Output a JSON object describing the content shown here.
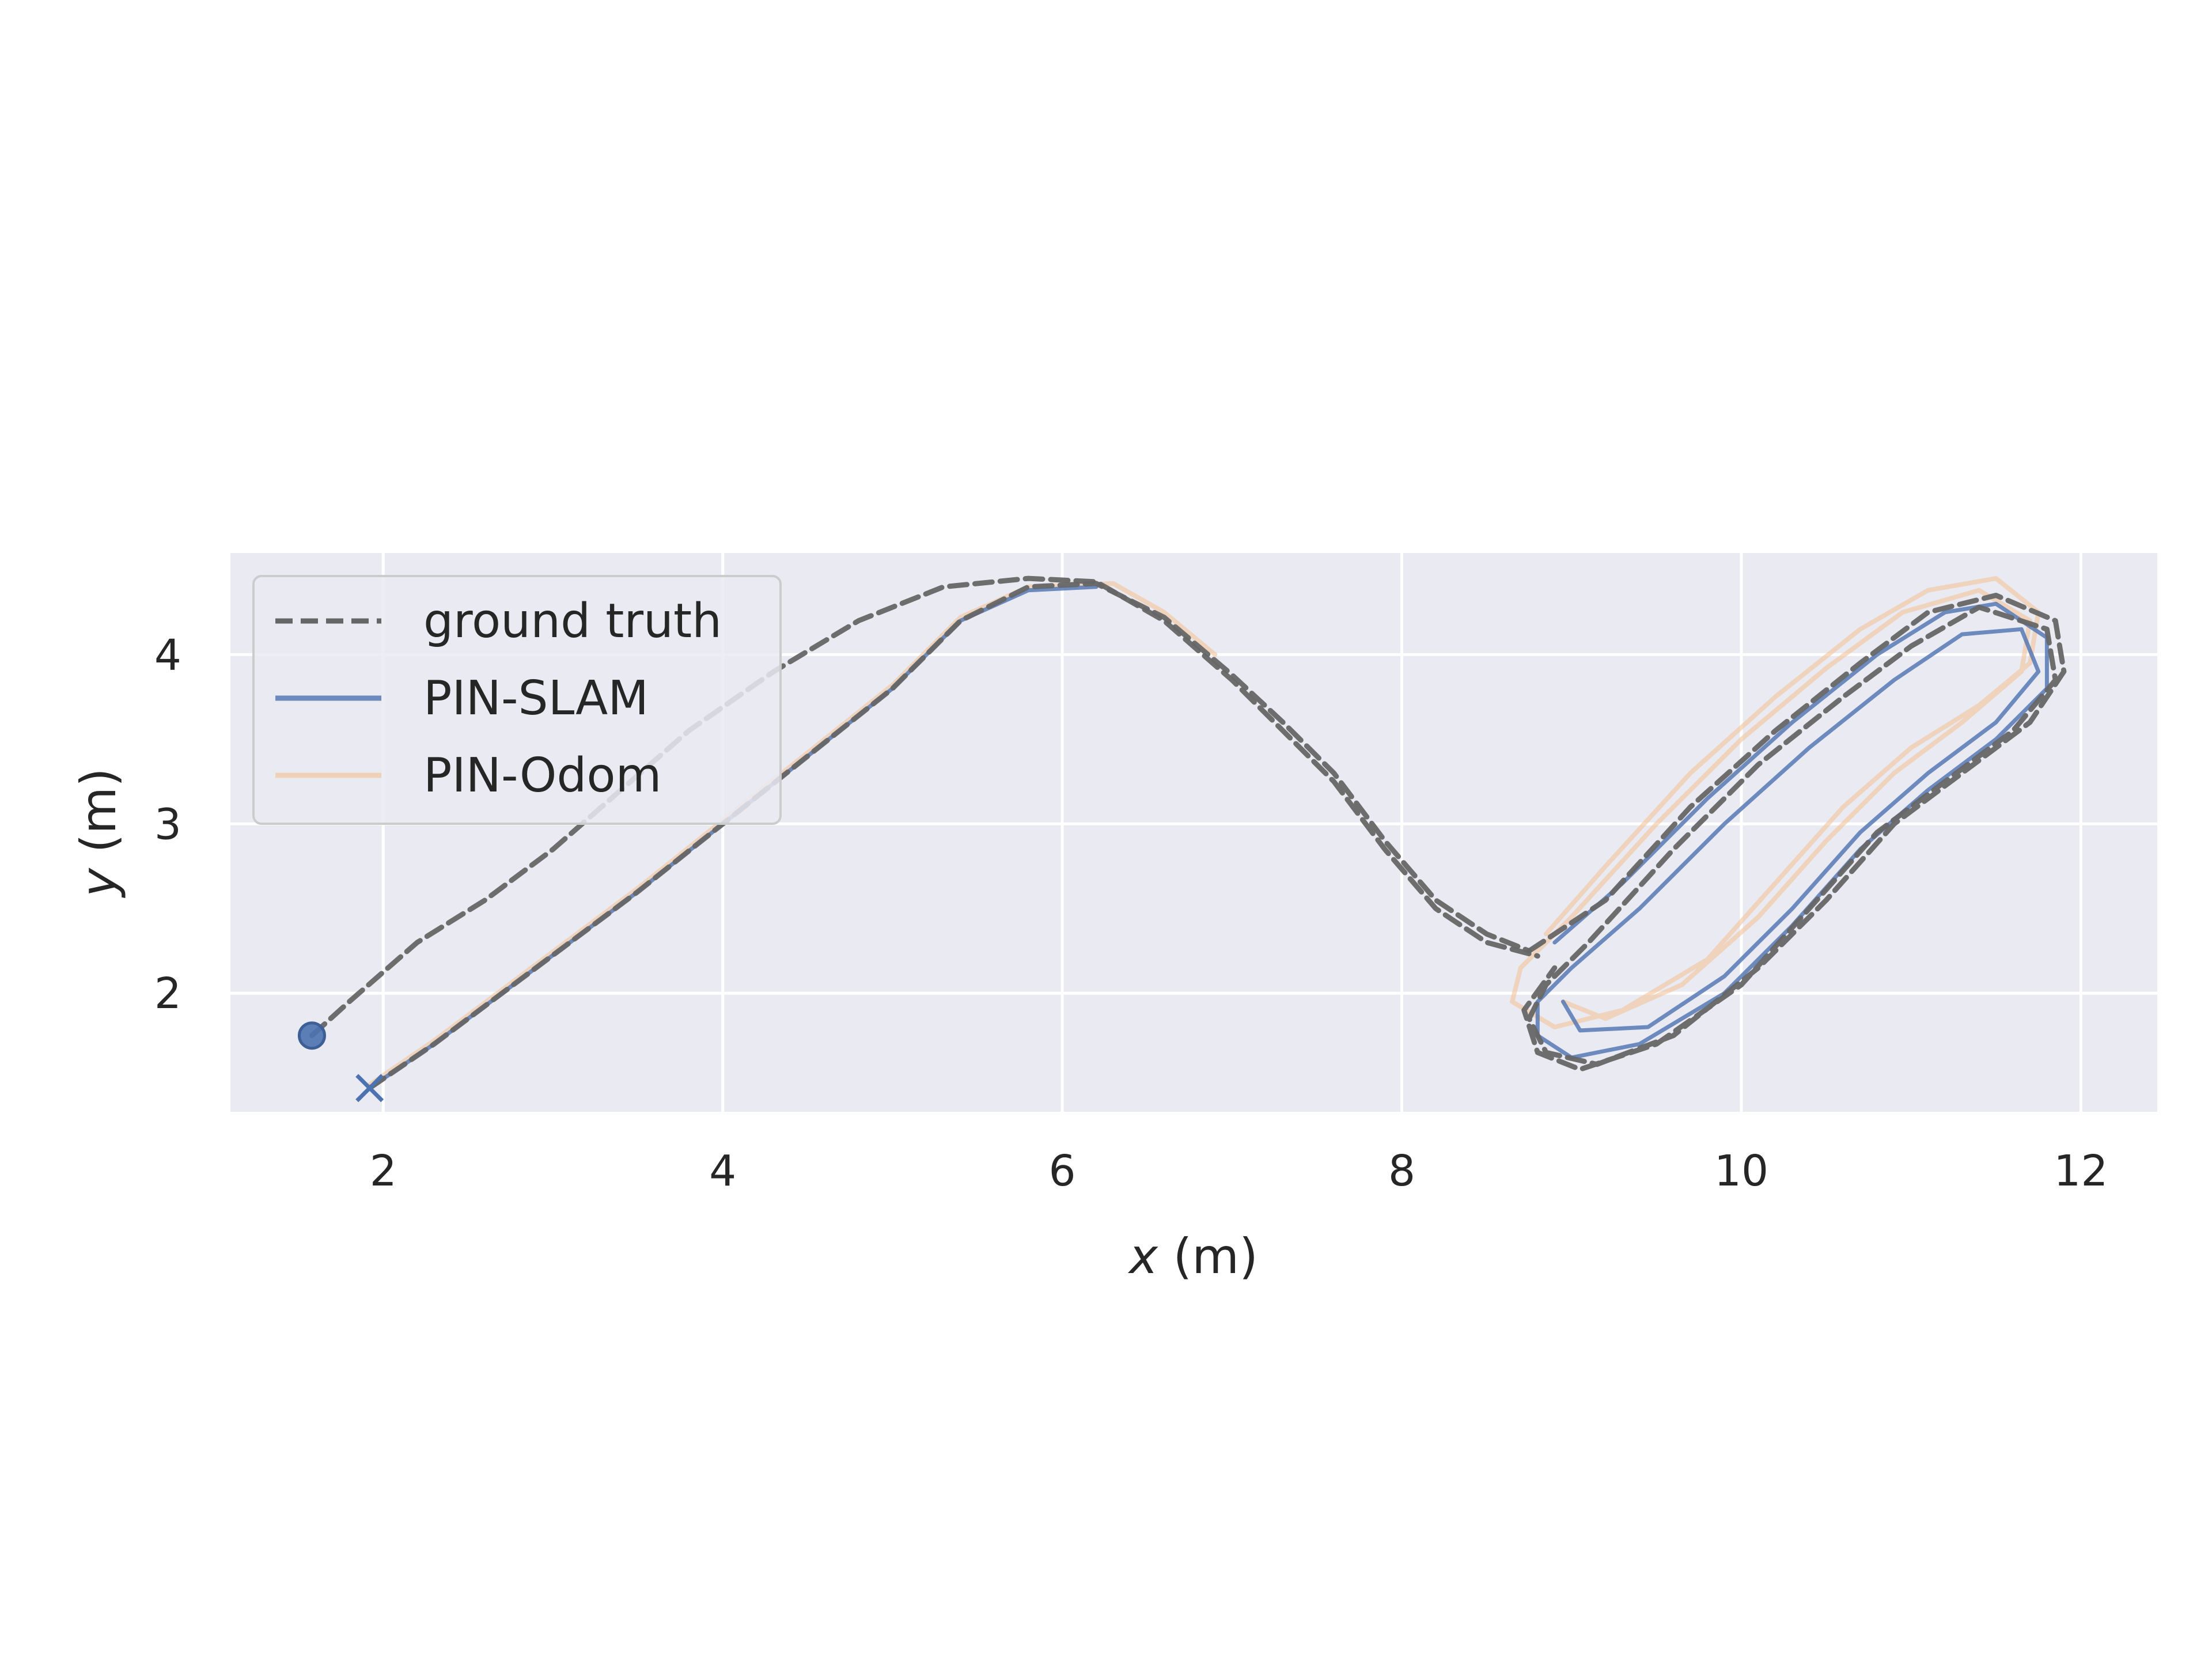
{
  "chart_data": {
    "type": "line",
    "xlabel": {
      "var": "x",
      "unit": " (m)"
    },
    "ylabel": {
      "var": "y",
      "unit": " (m)"
    },
    "xlim": [
      1.1,
      12.45
    ],
    "ylim": [
      1.3,
      4.6
    ],
    "x_ticks": [
      2,
      4,
      6,
      8,
      10,
      12
    ],
    "y_ticks": [
      2,
      3,
      4
    ],
    "grid": true,
    "legend_position": "top-left",
    "colors": {
      "ground_truth": "#666666",
      "pin_slam": "#4c72b0",
      "pin_odom": "#f3c08f",
      "plot_bg": "#eaeaf2",
      "grid": "#ffffff"
    },
    "start_marker": {
      "x": 1.58,
      "y": 1.75
    },
    "end_marker": {
      "x": 1.92,
      "y": 1.44
    },
    "series": [
      {
        "name": "ground truth",
        "style": "dashed",
        "segments": [
          [
            [
              1.58,
              1.75
            ],
            [
              1.8,
              1.95
            ],
            [
              2.2,
              2.3
            ],
            [
              2.6,
              2.55
            ],
            [
              3.0,
              2.85
            ],
            [
              3.4,
              3.2
            ],
            [
              3.8,
              3.55
            ],
            [
              4.3,
              3.9
            ],
            [
              4.8,
              4.2
            ],
            [
              5.3,
              4.4
            ],
            [
              5.8,
              4.45
            ],
            [
              6.2,
              4.43
            ],
            [
              6.6,
              4.2
            ],
            [
              7.0,
              3.85
            ],
            [
              7.3,
              3.55
            ],
            [
              7.6,
              3.25
            ],
            [
              7.9,
              2.85
            ],
            [
              8.2,
              2.5
            ],
            [
              8.5,
              2.3
            ],
            [
              8.8,
              2.22
            ]
          ],
          [
            [
              1.92,
              1.44
            ],
            [
              2.3,
              1.7
            ],
            [
              2.7,
              2.0
            ],
            [
              3.1,
              2.3
            ],
            [
              3.5,
              2.6
            ],
            [
              4.0,
              3.0
            ],
            [
              4.5,
              3.4
            ],
            [
              5.0,
              3.8
            ],
            [
              5.4,
              4.2
            ],
            [
              5.8,
              4.4
            ],
            [
              6.2,
              4.42
            ],
            [
              6.6,
              4.22
            ],
            [
              7.0,
              3.88
            ],
            [
              7.3,
              3.6
            ],
            [
              7.6,
              3.3
            ],
            [
              7.9,
              2.9
            ],
            [
              8.2,
              2.55
            ],
            [
              8.5,
              2.35
            ],
            [
              8.75,
              2.25
            ]
          ],
          [
            [
              8.75,
              2.25
            ],
            [
              9.2,
              2.55
            ],
            [
              9.7,
              3.1
            ],
            [
              10.2,
              3.55
            ],
            [
              10.7,
              3.95
            ],
            [
              11.1,
              4.25
            ],
            [
              11.5,
              4.35
            ],
            [
              11.85,
              4.2
            ],
            [
              11.9,
              3.9
            ],
            [
              11.7,
              3.6
            ],
            [
              11.3,
              3.3
            ],
            [
              10.9,
              3.0
            ],
            [
              10.5,
              2.55
            ],
            [
              10.1,
              2.15
            ],
            [
              9.6,
              1.75
            ],
            [
              9.15,
              1.58
            ],
            [
              8.85,
              1.65
            ],
            [
              8.75,
              1.85
            ],
            [
              8.85,
              2.05
            ],
            [
              9.1,
              2.3
            ],
            [
              9.6,
              2.85
            ],
            [
              10.1,
              3.35
            ],
            [
              10.6,
              3.75
            ],
            [
              11.0,
              4.05
            ],
            [
              11.4,
              4.28
            ],
            [
              11.8,
              4.15
            ],
            [
              11.85,
              3.85
            ],
            [
              11.6,
              3.55
            ],
            [
              11.2,
              3.25
            ],
            [
              10.8,
              2.95
            ],
            [
              10.4,
              2.5
            ],
            [
              10.0,
              2.05
            ],
            [
              9.5,
              1.7
            ],
            [
              9.05,
              1.55
            ],
            [
              8.8,
              1.65
            ],
            [
              8.72,
              1.9
            ],
            [
              8.9,
              2.15
            ]
          ]
        ]
      },
      {
        "name": "PIN-SLAM",
        "style": "solid",
        "segments": [
          [
            [
              1.92,
              1.44
            ],
            [
              2.3,
              1.7
            ],
            [
              2.7,
              2.0
            ],
            [
              3.1,
              2.3
            ],
            [
              3.5,
              2.6
            ],
            [
              4.0,
              3.0
            ],
            [
              4.5,
              3.4
            ],
            [
              5.0,
              3.8
            ],
            [
              5.4,
              4.2
            ],
            [
              5.8,
              4.38
            ],
            [
              6.2,
              4.4
            ]
          ],
          [
            [
              8.9,
              2.3
            ],
            [
              9.3,
              2.65
            ],
            [
              9.8,
              3.15
            ],
            [
              10.3,
              3.6
            ],
            [
              10.8,
              4.0
            ],
            [
              11.2,
              4.25
            ],
            [
              11.5,
              4.3
            ],
            [
              11.8,
              4.1
            ],
            [
              11.8,
              3.8
            ],
            [
              11.5,
              3.5
            ],
            [
              11.1,
              3.2
            ],
            [
              10.7,
              2.85
            ],
            [
              10.3,
              2.4
            ],
            [
              9.9,
              2.0
            ],
            [
              9.4,
              1.7
            ],
            [
              9.0,
              1.62
            ],
            [
              8.8,
              1.75
            ],
            [
              8.8,
              1.95
            ],
            [
              9.0,
              2.15
            ],
            [
              9.4,
              2.5
            ],
            [
              9.9,
              3.0
            ],
            [
              10.4,
              3.45
            ],
            [
              10.9,
              3.85
            ],
            [
              11.3,
              4.12
            ],
            [
              11.65,
              4.15
            ],
            [
              11.75,
              3.9
            ],
            [
              11.5,
              3.6
            ],
            [
              11.1,
              3.3
            ],
            [
              10.7,
              2.95
            ],
            [
              10.3,
              2.5
            ],
            [
              9.9,
              2.1
            ],
            [
              9.45,
              1.8
            ],
            [
              9.05,
              1.78
            ],
            [
              8.95,
              1.95
            ]
          ]
        ]
      },
      {
        "name": "PIN-Odom",
        "style": "solid",
        "segments": [
          [
            [
              1.92,
              1.46
            ],
            [
              2.3,
              1.72
            ],
            [
              2.7,
              2.02
            ],
            [
              3.1,
              2.32
            ],
            [
              3.5,
              2.62
            ],
            [
              4.0,
              3.02
            ],
            [
              4.5,
              3.42
            ],
            [
              5.0,
              3.82
            ],
            [
              5.4,
              4.22
            ],
            [
              5.8,
              4.4
            ],
            [
              6.3,
              4.42
            ],
            [
              6.6,
              4.25
            ],
            [
              6.9,
              4.0
            ]
          ],
          [
            [
              8.85,
              2.35
            ],
            [
              9.2,
              2.75
            ],
            [
              9.7,
              3.3
            ],
            [
              10.2,
              3.75
            ],
            [
              10.7,
              4.15
            ],
            [
              11.1,
              4.38
            ],
            [
              11.5,
              4.45
            ],
            [
              11.75,
              4.25
            ],
            [
              11.7,
              3.95
            ],
            [
              11.4,
              3.7
            ],
            [
              11.0,
              3.45
            ],
            [
              10.6,
              3.1
            ],
            [
              10.2,
              2.65
            ],
            [
              9.8,
              2.2
            ],
            [
              9.3,
              1.9
            ],
            [
              8.9,
              1.8
            ],
            [
              8.65,
              1.95
            ],
            [
              8.7,
              2.15
            ],
            [
              9.0,
              2.45
            ],
            [
              9.5,
              3.0
            ],
            [
              10.0,
              3.5
            ],
            [
              10.5,
              3.92
            ],
            [
              10.95,
              4.25
            ],
            [
              11.4,
              4.38
            ],
            [
              11.7,
              4.2
            ],
            [
              11.65,
              3.9
            ],
            [
              11.3,
              3.6
            ],
            [
              10.9,
              3.3
            ],
            [
              10.5,
              2.9
            ],
            [
              10.1,
              2.45
            ],
            [
              9.65,
              2.05
            ],
            [
              9.2,
              1.85
            ],
            [
              8.95,
              1.95
            ]
          ]
        ]
      }
    ]
  }
}
